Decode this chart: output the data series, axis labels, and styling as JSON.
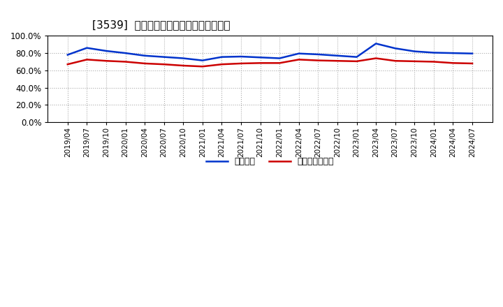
{
  "title": "[3539]  固定比率、固定長期適合率の推移",
  "x_labels": [
    "2019/04",
    "2019/07",
    "2019/10",
    "2020/01",
    "2020/04",
    "2020/07",
    "2020/10",
    "2021/01",
    "2021/04",
    "2021/07",
    "2021/10",
    "2022/01",
    "2022/04",
    "2022/07",
    "2022/10",
    "2023/01",
    "2023/04",
    "2023/07",
    "2023/10",
    "2024/01",
    "2024/04",
    "2024/07"
  ],
  "blue_values": [
    78.0,
    86.0,
    82.5,
    80.0,
    77.0,
    75.5,
    74.0,
    71.5,
    75.5,
    76.0,
    75.0,
    74.0,
    79.5,
    78.5,
    77.0,
    75.5,
    91.0,
    85.5,
    82.0,
    80.5,
    80.0,
    79.5
  ],
  "red_values": [
    67.0,
    72.5,
    71.0,
    70.0,
    68.0,
    67.0,
    65.5,
    64.5,
    67.0,
    68.0,
    68.5,
    68.5,
    72.5,
    71.5,
    71.0,
    70.5,
    74.0,
    71.0,
    70.5,
    70.0,
    68.5,
    68.0
  ],
  "blue_color": "#0033cc",
  "red_color": "#cc0000",
  "bg_color": "#ffffff",
  "grid_color": "#aaaaaa",
  "ylim": [
    0,
    100
  ],
  "yticks": [
    0,
    20,
    40,
    60,
    80,
    100
  ],
  "legend_blue": "固定比率",
  "legend_red": "固定長期適合率"
}
